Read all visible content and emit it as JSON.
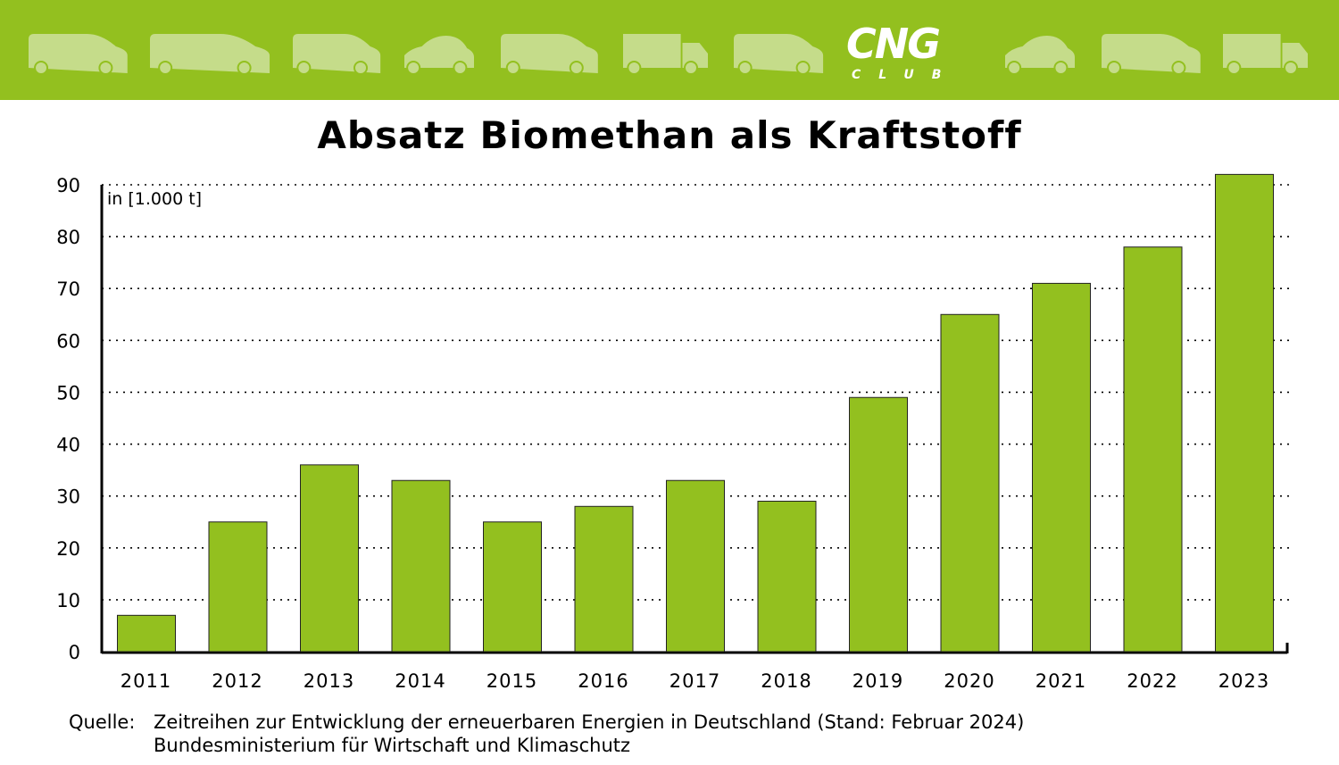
{
  "header": {
    "logo_text": "CNG",
    "logo_subtext": "CLUB",
    "brand_color": "#93c01f",
    "icons": [
      "van-icon",
      "bus-icon",
      "car-icon",
      "small-car-icon",
      "van-icon",
      "truck-icon",
      "car-icon",
      "small-car-icon",
      "van-icon",
      "truck-icon"
    ]
  },
  "chart_data": {
    "type": "bar",
    "title": "Absatz Biomethan als Kraftstoff",
    "unit_label": "in [1.000 t]",
    "categories": [
      "2011",
      "2012",
      "2013",
      "2014",
      "2015",
      "2016",
      "2017",
      "2018",
      "2019",
      "2020",
      "2021",
      "2022",
      "2023"
    ],
    "values": [
      7,
      25,
      36,
      33,
      25,
      28,
      33,
      29,
      49,
      65,
      71,
      78,
      92
    ],
    "ylim": [
      0,
      90
    ],
    "yticks": [
      0,
      10,
      20,
      30,
      40,
      50,
      60,
      70,
      80,
      90
    ],
    "grid": "dotted horizontal",
    "bar_color": "#93c01f"
  },
  "source": {
    "label": "Quelle:",
    "line1": "Zeitreihen zur Entwicklung der erneuerbaren Energien in Deutschland (Stand: Februar 2024)",
    "line2": "Bundesministerium für Wirtschaft und Klimaschutz"
  }
}
